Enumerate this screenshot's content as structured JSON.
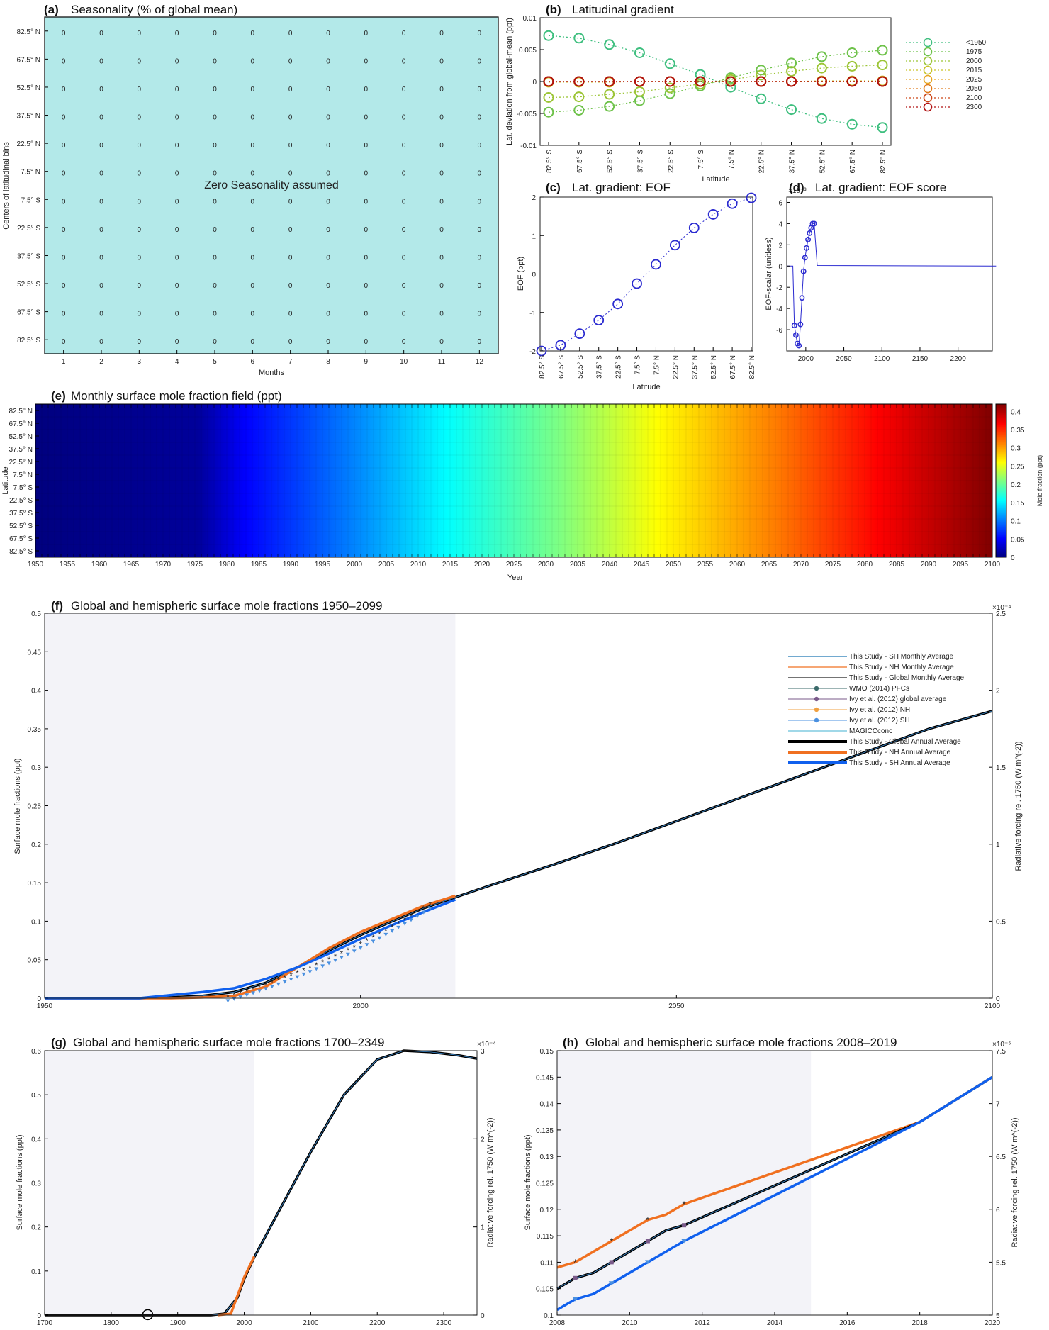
{
  "months": [
    "1",
    "2",
    "3",
    "4",
    "5",
    "6",
    "7",
    "8",
    "9",
    "10",
    "11",
    "12"
  ],
  "lat_labels": [
    "82.5° N",
    "67.5° N",
    "52.5° N",
    "37.5° N",
    "22.5° N",
    "7.5° N",
    "7.5° S",
    "22.5° S",
    "37.5° S",
    "52.5° S",
    "67.5° S",
    "82.5° S"
  ],
  "lat_labels_sn": [
    "82.5° S",
    "67.5° S",
    "52.5° S",
    "37.5° S",
    "22.5° S",
    "7.5° S",
    "7.5° N",
    "22.5° N",
    "37.5° N",
    "52.5° N",
    "67.5° N",
    "82.5° N"
  ],
  "colors": {
    "nh": "#f07020",
    "sh": "#1060ee",
    "glob": "#000000",
    "shade": "#f3f3f8",
    "teal": "#b3e9e9"
  },
  "panels": {
    "a": {
      "label": "(a)",
      "title": "Seasonality (% of global mean)",
      "xlabel": "Months",
      "ylabel": "Centers of latitudinal bins",
      "cell_value": "0",
      "annotation": "Zero Seasonality assumed"
    },
    "b": {
      "label": "(b)",
      "title": "Latitudinal gradient",
      "xlabel": "Latitude",
      "ylabel": "Lat. deviation from global-mean (ppt)",
      "yticks": [
        "0.01",
        "0.005",
        "0",
        "-0.005",
        "-0.01"
      ],
      "legend": [
        {
          "name": "<1950",
          "color": "#3fbf7f"
        },
        {
          "name": "1975",
          "color": "#6ec24a"
        },
        {
          "name": "2000",
          "color": "#9cc536"
        },
        {
          "name": "2015",
          "color": "#c9c327"
        },
        {
          "name": "2025",
          "color": "#e6a520"
        },
        {
          "name": "2050",
          "color": "#e07a1a"
        },
        {
          "name": "2100",
          "color": "#cc4515"
        },
        {
          "name": "2300",
          "color": "#b01010"
        }
      ]
    },
    "c": {
      "label": "(c)",
      "title": "Lat. gradient: EOF",
      "xlabel": "Latitude",
      "ylabel": "EOF (ppt)",
      "yticks": [
        "2",
        "1",
        "0",
        "-1",
        "-2"
      ]
    },
    "d": {
      "label": "(d)",
      "title": "Lat. gradient: EOF score",
      "ylabel": "EOF-scalar (unitless)",
      "exponent": "×10⁻³",
      "yticks": [
        "6",
        "4",
        "2",
        "0",
        "-2",
        "-4",
        "-6"
      ],
      "xticks": [
        "2000",
        "2050",
        "2100",
        "2150",
        "2200"
      ]
    },
    "e": {
      "label": "(e)",
      "title": "Monthly surface mole fraction field (ppt)",
      "xlabel": "Year",
      "ylabel": "Latitude",
      "cbar_label": "Mole fraction (ppt)",
      "xticks": [
        "1950",
        "1955",
        "1960",
        "1965",
        "1970",
        "1975",
        "1980",
        "1985",
        "1990",
        "1995",
        "2000",
        "2005",
        "2010",
        "2015",
        "2020",
        "2025",
        "2030",
        "2035",
        "2040",
        "2045",
        "2050",
        "2055",
        "2060",
        "2065",
        "2070",
        "2075",
        "2080",
        "2085",
        "2090",
        "2095",
        "2100"
      ],
      "cticks": [
        "0.4",
        "0.35",
        "0.3",
        "0.25",
        "0.2",
        "0.15",
        "0.1",
        "0.05",
        "0"
      ]
    },
    "f": {
      "label": "(f)",
      "title": "Global and hemispheric surface mole fractions 1950–2099",
      "ylabel": "Surface mole fractions (ppt)",
      "rlabel": "Radiative forcing rel. 1750 (W m^(-2))",
      "exponent": "×10⁻⁴",
      "yticks": [
        "0.5",
        "0.45",
        "0.4",
        "0.35",
        "0.3",
        "0.25",
        "0.2",
        "0.15",
        "0.1",
        "0.05",
        "0"
      ],
      "rticks": [
        "2.5",
        "2",
        "1.5",
        "1",
        "0.5",
        "0"
      ],
      "xticks": [
        "1950",
        "2000",
        "2050",
        "2100"
      ],
      "legend": [
        {
          "name": "This Study - SH Monthly Average",
          "color": "#1f77b4",
          "kind": "line",
          "w": 1.2
        },
        {
          "name": "This Study - NH Monthly Average",
          "color": "#f07020",
          "kind": "line",
          "w": 1.2
        },
        {
          "name": "This Study - Global Monthly Average",
          "color": "#222222",
          "kind": "line",
          "w": 1.2
        },
        {
          "name": "WMO (2014) PFCs",
          "color": "#3a6a6a",
          "kind": "tri",
          "w": 1
        },
        {
          "name": "Ivy  et al. (2012) global average",
          "color": "#7a5a8a",
          "kind": "sq",
          "w": 1
        },
        {
          "name": "Ivy  et al. (2012) NH",
          "color": "#f0a040",
          "kind": "star",
          "w": 1
        },
        {
          "name": "Ivy  et al. (2012) SH",
          "color": "#4a90e0",
          "kind": "tri",
          "w": 1
        },
        {
          "name": "MAGICCconc",
          "color": "#40b0d0",
          "kind": "line",
          "w": 1
        },
        {
          "name": "This Study - Global Annual Average",
          "color": "#000000",
          "kind": "line",
          "w": 4
        },
        {
          "name": "This Study - NH Annual Average",
          "color": "#f07020",
          "kind": "line",
          "w": 4
        },
        {
          "name": "This Study - SH Annual Average",
          "color": "#1060ee",
          "kind": "line",
          "w": 4
        }
      ]
    },
    "g": {
      "label": "(g)",
      "title": "Global and hemispheric surface mole fractions 1700–2349",
      "ylabel": "Surface mole fractions (ppt)",
      "rlabel": "Radiative forcing rel. 1750 (W m^(-2))",
      "exponent": "×10⁻⁴",
      "yticks": [
        "0.6",
        "0.5",
        "0.4",
        "0.3",
        "0.2",
        "0.1",
        "0"
      ],
      "rticks": [
        "3",
        "2",
        "1",
        "0"
      ],
      "xticks": [
        "1700",
        "1800",
        "1900",
        "2000",
        "2100",
        "2200",
        "2300"
      ]
    },
    "h": {
      "label": "(h)",
      "title": "Global and hemispheric surface mole fractions 2008–2019",
      "ylabel": "Surface mole fractions (ppt)",
      "rlabel": "Radiative forcing rel. 1750 (W m^(-2))",
      "exponent": "×10⁻⁵",
      "yticks": [
        "0.15",
        "0.145",
        "0.14",
        "0.135",
        "0.13",
        "0.125",
        "0.12",
        "0.115",
        "0.11",
        "0.105",
        "0.1"
      ],
      "rticks": [
        "7.5",
        "7",
        "6.5",
        "6",
        "5.5",
        "5"
      ],
      "xticks": [
        "2008",
        "2010",
        "2012",
        "2014",
        "2016",
        "2018",
        "2020"
      ]
    }
  },
  "chart_data": [
    {
      "type": "heatmap",
      "panel": "a",
      "rows": 12,
      "cols": 12,
      "value": 0,
      "xlim": [
        1,
        12
      ]
    },
    {
      "type": "line",
      "panel": "b",
      "x_categories": [
        "82.5° S",
        "67.5° S",
        "52.5° S",
        "37.5° S",
        "22.5° S",
        "7.5° S",
        "7.5° N",
        "22.5° N",
        "37.5° N",
        "52.5° N",
        "67.5° N",
        "82.5° N"
      ],
      "series": [
        {
          "name": "<1950",
          "values": [
            0.0072,
            0.0068,
            0.0058,
            0.0045,
            0.0028,
            0.0011,
            -0.0009,
            -0.0027,
            -0.0044,
            -0.0058,
            -0.0067,
            -0.0072
          ]
        },
        {
          "name": "1975",
          "values": [
            -0.0048,
            -0.0045,
            -0.0039,
            -0.003,
            -0.0019,
            -0.0007,
            0.0006,
            0.0018,
            0.0029,
            0.0039,
            0.0045,
            0.0049
          ]
        },
        {
          "name": "2000",
          "values": [
            -0.0025,
            -0.0024,
            -0.002,
            -0.0016,
            -0.001,
            -0.0004,
            0.0003,
            0.001,
            0.0016,
            0.0021,
            0.0024,
            0.0026
          ]
        },
        {
          "name": "2015",
          "values": [
            -0.0001,
            -0.0001,
            -0.0001,
            0,
            0,
            0,
            0,
            0,
            0,
            0.0001,
            0.0001,
            0.0001
          ]
        },
        {
          "name": "2025",
          "values": [
            0,
            0,
            0,
            0,
            0,
            0,
            0,
            0,
            0,
            0,
            0,
            0
          ]
        },
        {
          "name": "2050",
          "values": [
            0,
            0,
            0,
            0,
            0,
            0,
            0,
            0,
            0,
            0,
            0,
            0
          ]
        },
        {
          "name": "2100",
          "values": [
            0,
            0,
            0,
            0,
            0,
            0,
            0,
            0,
            0,
            0,
            0,
            0
          ]
        },
        {
          "name": "2300",
          "values": [
            0,
            0,
            0,
            0,
            0,
            0,
            0,
            0,
            0,
            0,
            0,
            0
          ]
        }
      ],
      "ylim": [
        -0.01,
        0.01
      ]
    },
    {
      "type": "scatter",
      "panel": "c",
      "x_categories": [
        "82.5° S",
        "67.5° S",
        "52.5° S",
        "37.5° S",
        "22.5° S",
        "7.5° S",
        "7.5° N",
        "22.5° N",
        "37.5° N",
        "52.5° N",
        "67.5° N",
        "82.5° N"
      ],
      "values": [
        -2.0,
        -1.85,
        -1.55,
        -1.2,
        -0.78,
        -0.25,
        0.25,
        0.75,
        1.2,
        1.55,
        1.83,
        1.98
      ],
      "ylim": [
        -2,
        2
      ]
    },
    {
      "type": "line",
      "panel": "d",
      "x": [
        1975,
        1977,
        1979,
        1981,
        1983,
        1985,
        1987,
        1989,
        1991,
        1993,
        1995,
        1997,
        1999,
        2001,
        2003,
        2005,
        2007,
        2009,
        2011,
        2015,
        2250
      ],
      "y": [
        0,
        0,
        0,
        0,
        0,
        -5.6,
        -6.5,
        -7.3,
        -7.5,
        -5.5,
        -3.0,
        -0.5,
        0.8,
        1.7,
        2.5,
        3.1,
        3.6,
        4.0,
        4.0,
        0.05,
        0.0
      ],
      "xlim": [
        1975,
        2245
      ],
      "ylim": [
        -8,
        6.5
      ],
      "scale_note": "×10⁻³"
    },
    {
      "type": "heatmap",
      "panel": "e",
      "x_range": [
        1950,
        2100
      ],
      "clim": [
        0,
        0.42
      ],
      "global_by_year": [
        [
          1950,
          0
        ],
        [
          1975,
          0
        ],
        [
          1985,
          0.005
        ],
        [
          1995,
          0.05
        ],
        [
          2005,
          0.1
        ],
        [
          2015,
          0.13
        ],
        [
          2030,
          0.17
        ],
        [
          2050,
          0.23
        ],
        [
          2070,
          0.3
        ],
        [
          2090,
          0.38
        ],
        [
          2100,
          0.42
        ]
      ]
    },
    {
      "type": "line",
      "panel": "f",
      "xlim": [
        1950,
        2100
      ],
      "ylim": [
        0,
        0.5
      ],
      "shaded_until": 2015,
      "series": [
        {
          "name": "This Study - Global Annual Average",
          "x": [
            1950,
            1965,
            1970,
            1975,
            1980,
            1985,
            1990,
            1995,
            2000,
            2005,
            2010,
            2015,
            2020,
            2030,
            2040,
            2050,
            2060,
            2070,
            2080,
            2090,
            2100
          ],
          "y": [
            0,
            0,
            0.001,
            0.003,
            0.008,
            0.02,
            0.04,
            0.062,
            0.082,
            0.1,
            0.117,
            0.131,
            0.145,
            0.172,
            0.2,
            0.23,
            0.26,
            0.29,
            0.32,
            0.35,
            0.373
          ]
        },
        {
          "name": "This Study - NH Annual Average",
          "x": [
            1950,
            1970,
            1975,
            1980,
            1985,
            1990,
            1995,
            2000,
            2005,
            2010,
            2015
          ],
          "y": [
            0,
            0,
            0.001,
            0.003,
            0.015,
            0.04,
            0.065,
            0.086,
            0.103,
            0.12,
            0.133
          ]
        },
        {
          "name": "This Study - SH Annual Average",
          "x": [
            1950,
            1965,
            1970,
            1975,
            1980,
            1985,
            1990,
            1995,
            2000,
            2005,
            2010,
            2015
          ],
          "y": [
            0,
            0,
            0.004,
            0.008,
            0.013,
            0.025,
            0.04,
            0.058,
            0.077,
            0.095,
            0.112,
            0.128
          ]
        }
      ]
    },
    {
      "type": "line",
      "panel": "g",
      "xlim": [
        1700,
        2350
      ],
      "ylim": [
        0,
        0.6
      ],
      "shaded_until": 2015,
      "series": [
        {
          "name": "This Study - Global Annual Average",
          "x": [
            1700,
            1950,
            1970,
            1990,
            2000,
            2015,
            2050,
            2100,
            2150,
            2200,
            2240,
            2280,
            2320,
            2350
          ],
          "y": [
            0,
            0,
            0.003,
            0.04,
            0.082,
            0.131,
            0.23,
            0.37,
            0.5,
            0.58,
            0.6,
            0.597,
            0.59,
            0.582
          ]
        },
        {
          "name": "This Study - NH Annual Average",
          "x": [
            1960,
            1980,
            2000,
            2015
          ],
          "y": [
            0,
            0.003,
            0.086,
            0.133
          ]
        }
      ]
    },
    {
      "type": "line",
      "panel": "h",
      "xlim": [
        2008,
        2020
      ],
      "ylim": [
        0.1,
        0.15
      ],
      "shaded_until": 2015,
      "series": [
        {
          "name": "This Study - NH Annual Average",
          "x": [
            2008,
            2008.5,
            2009,
            2009.5,
            2010,
            2010.5,
            2011,
            2011.5,
            2018,
            2020
          ],
          "y": [
            0.109,
            0.11,
            0.112,
            0.114,
            0.116,
            0.118,
            0.119,
            0.121,
            0.1365,
            0.145
          ]
        },
        {
          "name": "This Study - Global Annual Average",
          "x": [
            2008,
            2008.5,
            2009,
            2009.5,
            2010,
            2010.5,
            2011,
            2011.5,
            2018,
            2020
          ],
          "y": [
            0.105,
            0.107,
            0.108,
            0.11,
            0.112,
            0.114,
            0.116,
            0.117,
            0.1365,
            0.145
          ]
        },
        {
          "name": "This Study - SH Annual Average",
          "x": [
            2008,
            2008.5,
            2009,
            2009.5,
            2010,
            2010.5,
            2011,
            2011.5,
            2018,
            2020
          ],
          "y": [
            0.101,
            0.103,
            0.104,
            0.106,
            0.108,
            0.11,
            0.112,
            0.114,
            0.1365,
            0.145
          ]
        }
      ]
    }
  ]
}
